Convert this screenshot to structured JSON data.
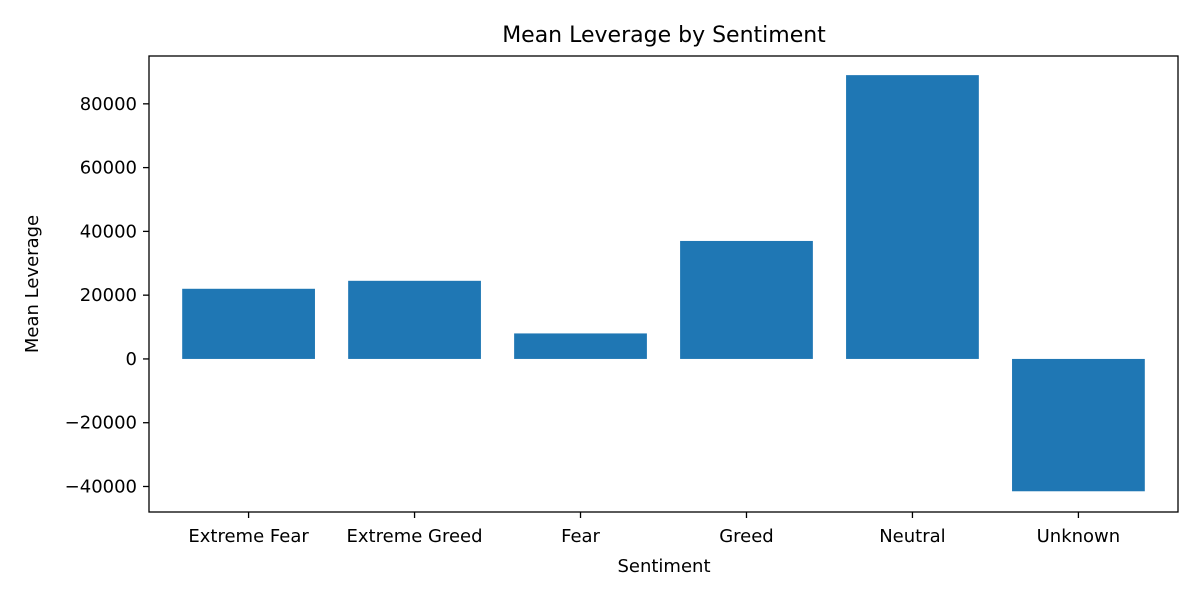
{
  "chart_data": {
    "type": "bar",
    "title": "Mean Leverage by Sentiment",
    "xlabel": "Sentiment",
    "ylabel": "Mean Leverage",
    "categories": [
      "Extreme Fear",
      "Extreme Greed",
      "Fear",
      "Greed",
      "Neutral",
      "Unknown"
    ],
    "values": [
      22000,
      24500,
      8000,
      37000,
      89000,
      -41500
    ],
    "ylim": [
      -48000,
      95000
    ],
    "yticks": [
      -40000,
      -20000,
      0,
      20000,
      40000,
      60000,
      80000
    ],
    "ytick_labels": [
      "−40000",
      "−20000",
      "0",
      "20000",
      "40000",
      "60000",
      "80000"
    ],
    "bar_color": "#1f77b4",
    "grid": false,
    "legend": "none"
  }
}
